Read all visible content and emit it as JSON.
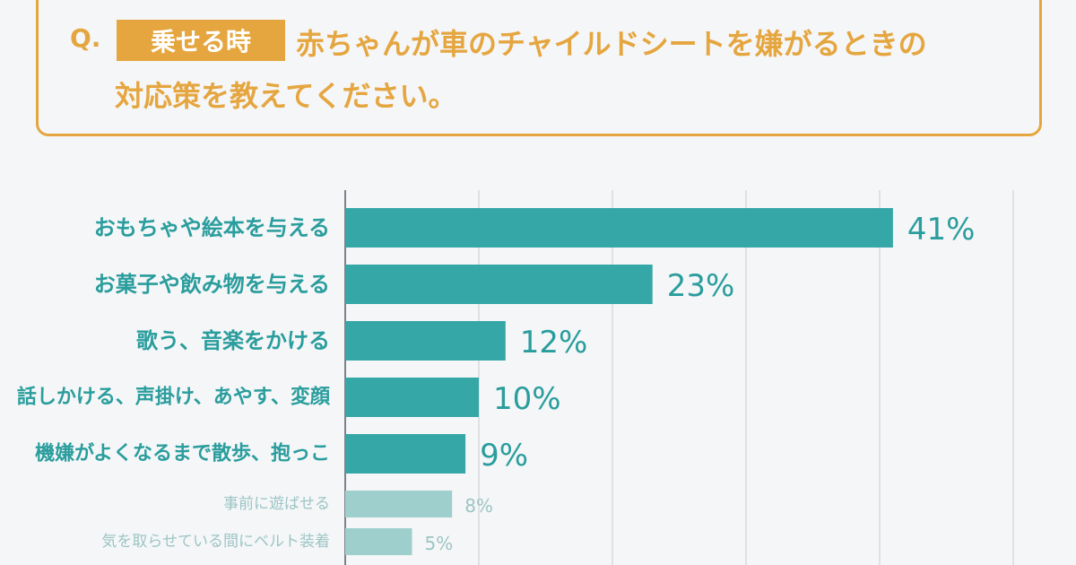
{
  "question": {
    "prefix": "Q.",
    "tag": "乗せる時",
    "line1": "赤ちゃんが車のチャイルドシートを嫌がるときの",
    "line2": "対応策を教えてください。"
  },
  "colors": {
    "accent": "#e5a640",
    "bar_primary": "#35a7a7",
    "bar_secondary": "#9fcfcd",
    "label_primary": "#2a9d9d",
    "label_secondary": "#9cc5c4",
    "grid": "#c9ccd2"
  },
  "chart_data": {
    "type": "bar",
    "orientation": "horizontal",
    "categories": [
      "おもちゃや絵本を与える",
      "お菓子や飲み物を与える",
      "歌う、音楽をかける",
      "話しかける、声掛け、あやす、変顔",
      "機嫌がよくなるまで散歩、抱っこ",
      "事前に遊ばせる",
      "気を取らせている間にベルト装着"
    ],
    "values": [
      41,
      23,
      12,
      10,
      9,
      8,
      5
    ],
    "value_labels": [
      "41%",
      "23%",
      "12%",
      "10%",
      "9%",
      "8%",
      "5%"
    ],
    "highlight_count": 5,
    "xlim": [
      0,
      50
    ],
    "grid": true,
    "unit": "%"
  }
}
